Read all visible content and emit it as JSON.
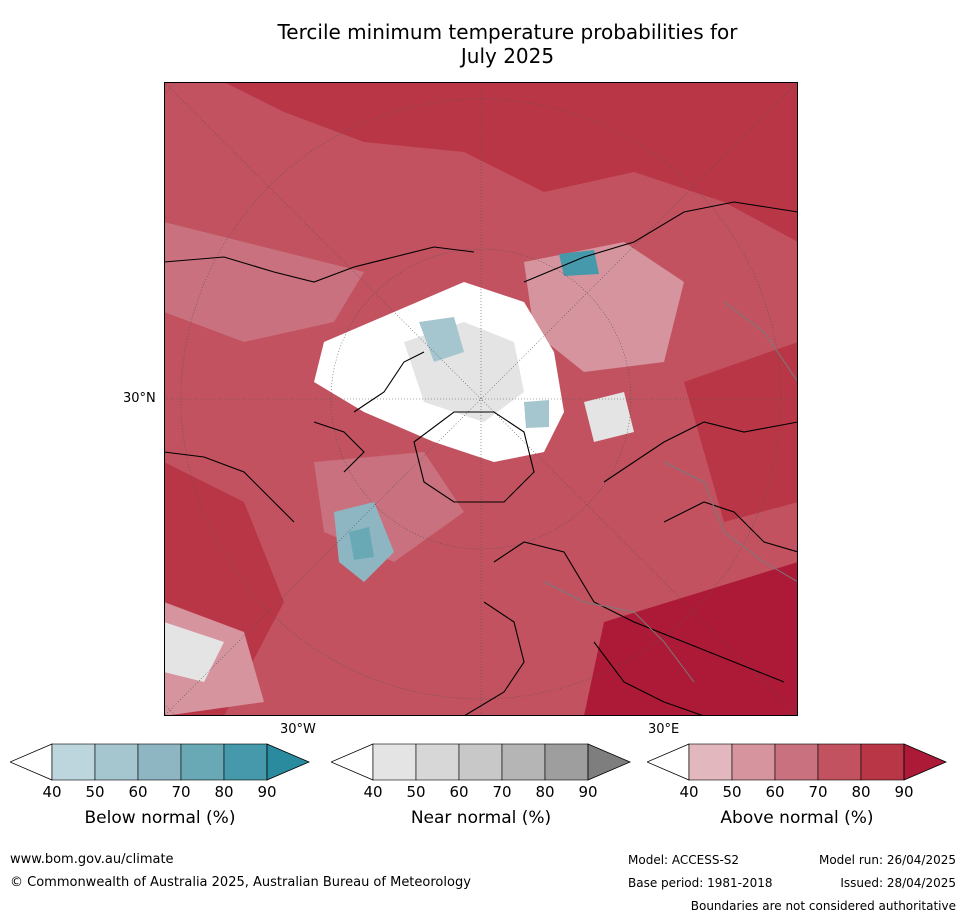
{
  "title_line1": "Tercile minimum temperature probabilities for",
  "title_line2": "July 2025",
  "map": {
    "lat_label": "30°N",
    "lon_label_left": "30°W",
    "lon_label_right": "30°E"
  },
  "colorbars": [
    {
      "label": "Below normal (%)",
      "ticks": [
        "40",
        "50",
        "60",
        "70",
        "80",
        "90"
      ],
      "colors": [
        "#ffffff",
        "#bdd5dc",
        "#a5c6cf",
        "#8db6c2",
        "#69a9b6",
        "#4599ab",
        "#2a8a9e"
      ]
    },
    {
      "label": "Near normal (%)",
      "ticks": [
        "40",
        "50",
        "60",
        "70",
        "80",
        "90"
      ],
      "colors": [
        "#ffffff",
        "#e4e4e4",
        "#d7d7d7",
        "#c8c8c8",
        "#b5b5b5",
        "#9e9e9e",
        "#7e7e7e"
      ]
    },
    {
      "label": "Above normal (%)",
      "ticks": [
        "40",
        "50",
        "60",
        "70",
        "80",
        "90"
      ],
      "colors": [
        "#ffffff",
        "#e2b8be",
        "#d5949e",
        "#c9717e",
        "#c2525f",
        "#b93647",
        "#ad1a37"
      ]
    }
  ],
  "footer": {
    "website": "www.bom.gov.au/climate",
    "copyright": "© Commonwealth of Australia 2025, Australian Bureau of Meteorology",
    "model": "Model: ACCESS-S2",
    "model_run": "Model run: 26/04/2025",
    "base_period": "Base period: 1981-2018",
    "issued": "Issued: 28/04/2025",
    "disclaimer": "Boundaries are not considered authoritative"
  }
}
